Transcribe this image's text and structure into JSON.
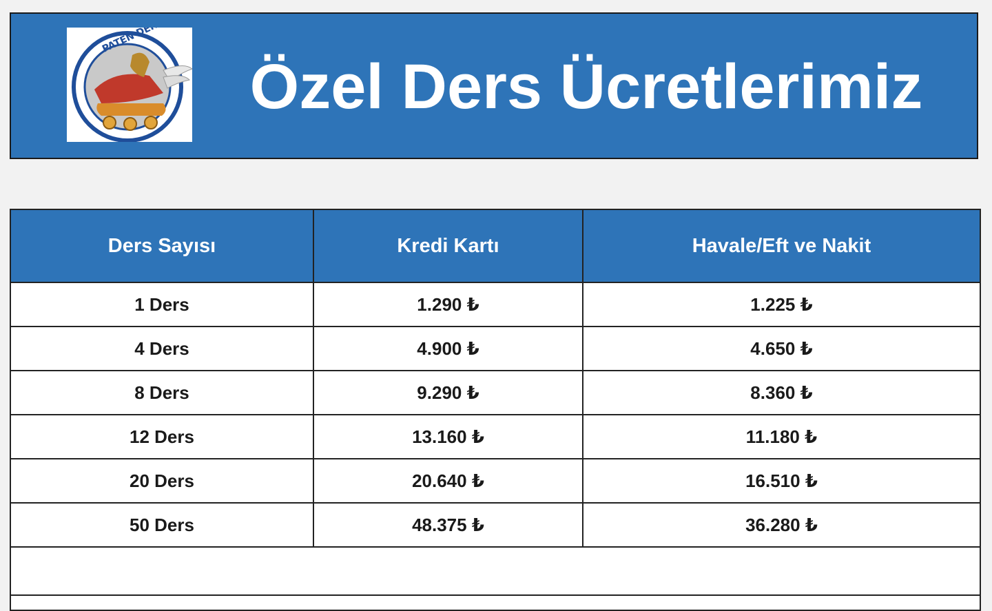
{
  "header": {
    "title": "Özel Ders Ücretlerimiz",
    "logo_text": "PATEN DERSİ TR",
    "background_color": "#2e74b8"
  },
  "table": {
    "columns": [
      "Ders Sayısı",
      "Kredi Kartı",
      "Havale/Eft ve Nakit"
    ],
    "rows": [
      [
        "1 Ders",
        "1.290 ₺",
        "1.225 ₺"
      ],
      [
        "4 Ders",
        "4.900 ₺",
        "4.650 ₺"
      ],
      [
        "8 Ders",
        "9.290 ₺",
        "8.360 ₺"
      ],
      [
        "12 Ders",
        "13.160 ₺",
        "11.180 ₺"
      ],
      [
        "20 Ders",
        "20.640 ₺",
        "16.510 ₺"
      ],
      [
        "50 Ders",
        "48.375 ₺",
        "36.280 ₺"
      ]
    ]
  }
}
